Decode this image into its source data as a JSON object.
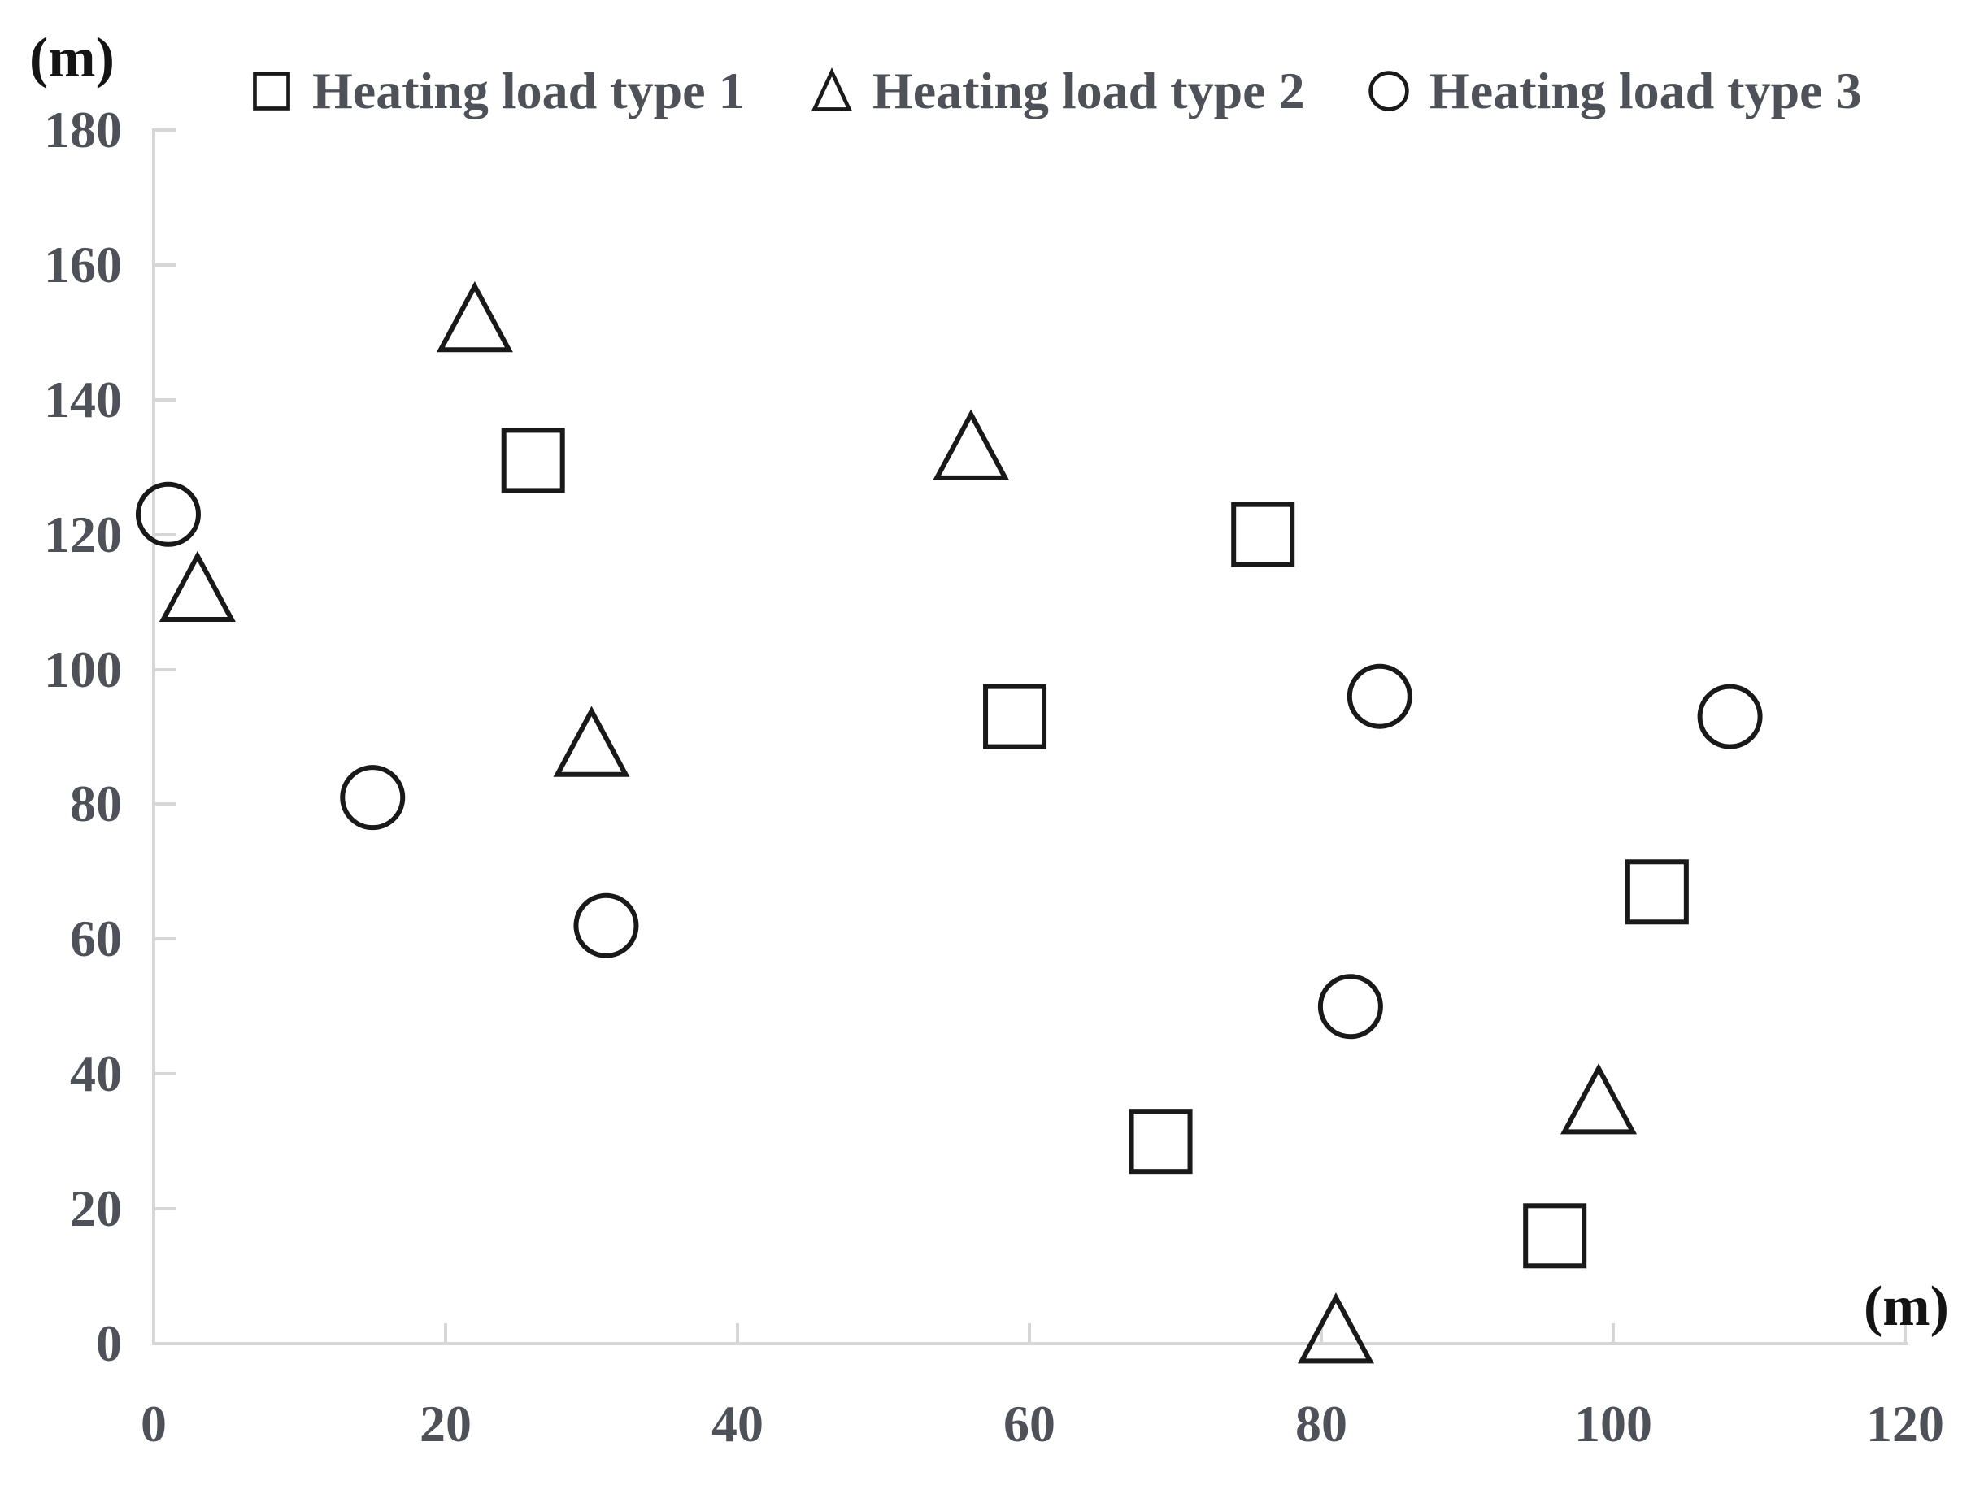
{
  "chart_data": {
    "type": "scatter",
    "title": "",
    "x_axis": {
      "unit_label": "(m)",
      "min": 0,
      "max": 120,
      "tick_step": 20,
      "ticks": [
        0,
        20,
        40,
        60,
        80,
        100,
        120
      ]
    },
    "y_axis": {
      "unit_label": "(m)",
      "min": 0,
      "max": 180,
      "tick_step": 20,
      "ticks": [
        0,
        20,
        40,
        60,
        80,
        100,
        120,
        140,
        160,
        180
      ]
    },
    "legend_position": "top",
    "grid": false,
    "series": [
      {
        "name": "Heating load type 1",
        "marker": "square",
        "points": [
          [
            26,
            131
          ],
          [
            59,
            93
          ],
          [
            69,
            30
          ],
          [
            76,
            120
          ],
          [
            96,
            16
          ],
          [
            103,
            67
          ]
        ]
      },
      {
        "name": "Heating load type 2",
        "marker": "triangle",
        "points": [
          [
            3,
            112
          ],
          [
            22,
            152
          ],
          [
            30,
            89
          ],
          [
            56,
            133
          ],
          [
            81,
            2
          ],
          [
            99,
            36
          ]
        ]
      },
      {
        "name": "Heating load type 3",
        "marker": "circle",
        "points": [
          [
            1,
            123
          ],
          [
            15,
            81
          ],
          [
            31,
            62
          ],
          [
            82,
            50
          ],
          [
            84,
            96
          ],
          [
            108,
            93
          ]
        ]
      }
    ],
    "colors": {
      "marker_stroke": "#191919",
      "axis_line": "#d6d6d6",
      "tick_label": "#4e5157",
      "legend_text": "#4e5157",
      "unit_label": "#141414",
      "background": "#ffffff"
    }
  }
}
